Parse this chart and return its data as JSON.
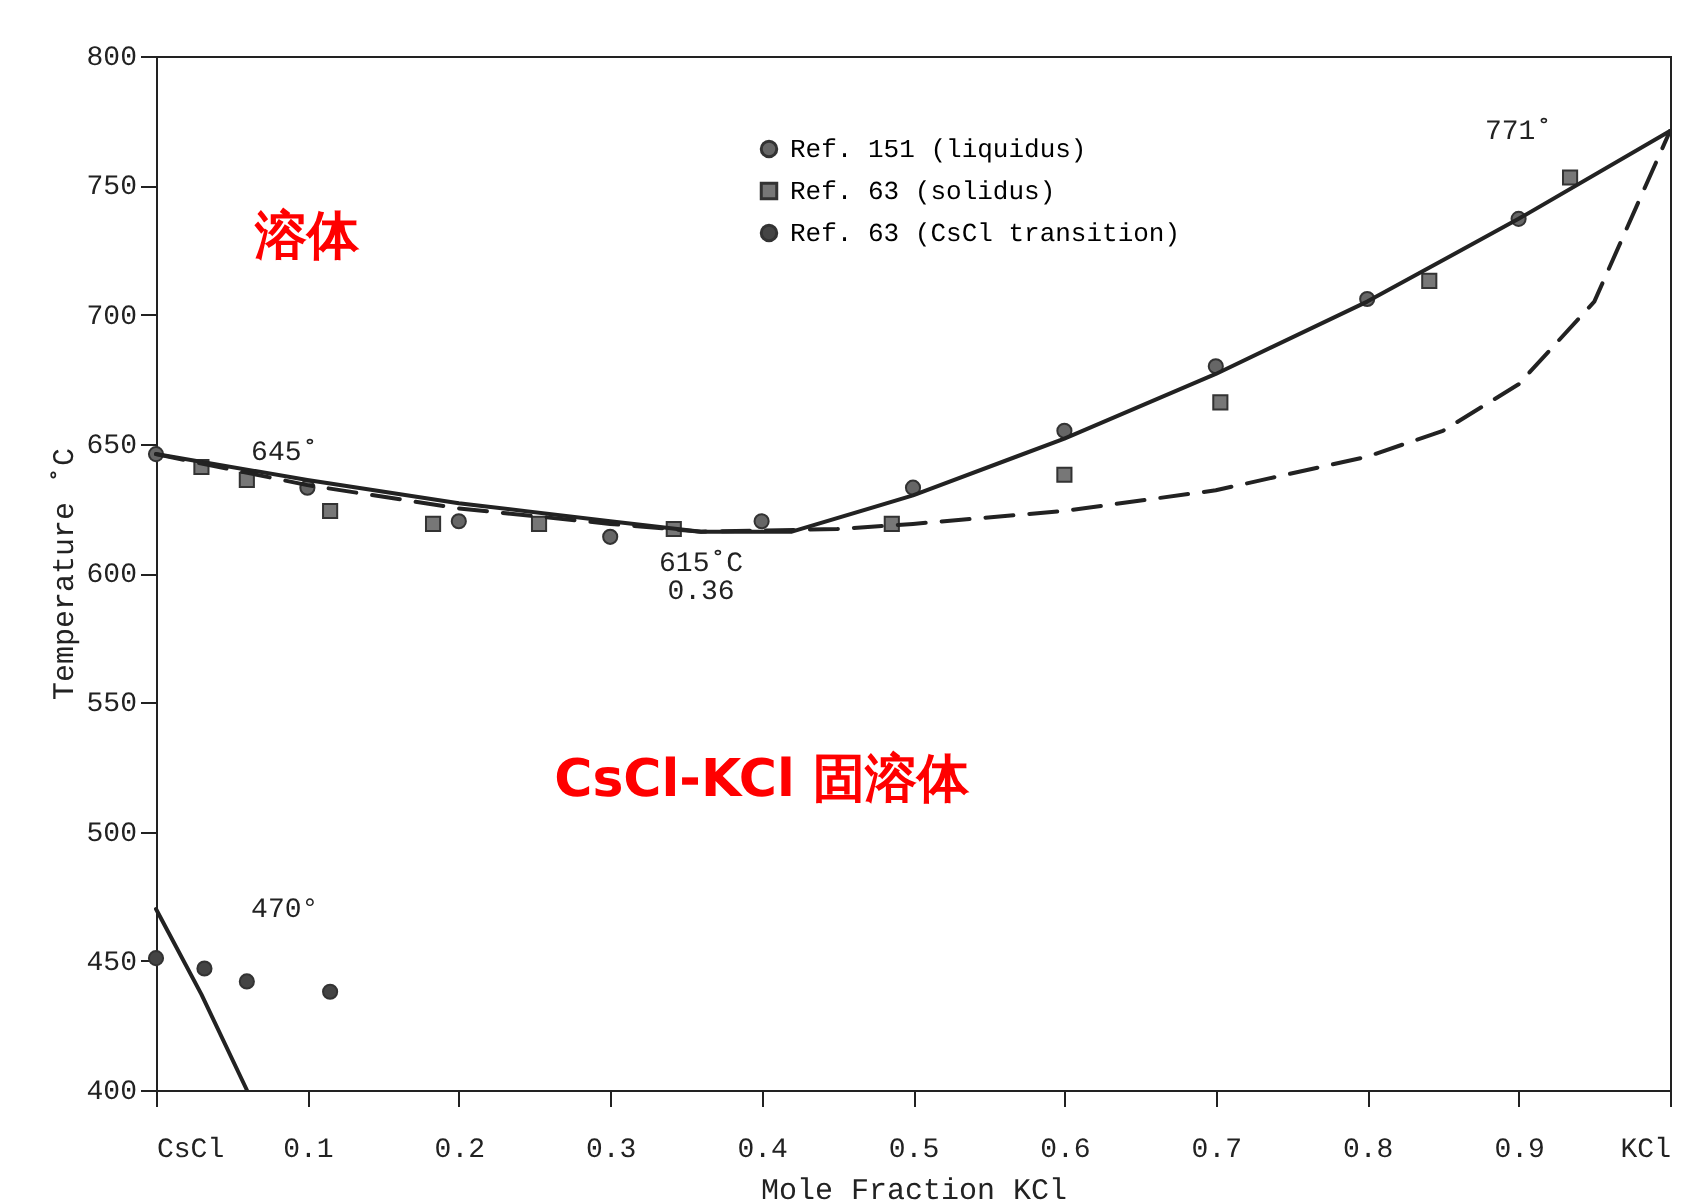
{
  "chart_data": {
    "type": "scatter",
    "xlabel": "Mole Fraction KCl",
    "ylabel": "Temperature ˚C",
    "xlim": [
      0,
      1
    ],
    "ylim": [
      400,
      800
    ],
    "xticks": [
      {
        "value": 0,
        "label": "CsCl"
      },
      {
        "value": 0.1,
        "label": "0.1"
      },
      {
        "value": 0.2,
        "label": "0.2"
      },
      {
        "value": 0.3,
        "label": "0.3"
      },
      {
        "value": 0.4,
        "label": "0.4"
      },
      {
        "value": 0.5,
        "label": "0.5"
      },
      {
        "value": 0.6,
        "label": "0.6"
      },
      {
        "value": 0.7,
        "label": "0.7"
      },
      {
        "value": 0.8,
        "label": "0.8"
      },
      {
        "value": 0.9,
        "label": "0.9"
      },
      {
        "value": 1,
        "label": "KCl"
      }
    ],
    "yticks": [
      400,
      450,
      500,
      550,
      600,
      650,
      700,
      750,
      800
    ],
    "grid": false,
    "legend": "top center",
    "series": [
      {
        "name": "Ref. 151 (liquidus)",
        "marker": "circle",
        "color": "#666666",
        "x": [
          0,
          0.1,
          0.2,
          0.3,
          0.4,
          0.5,
          0.6,
          0.7,
          0.8,
          0.9
        ],
        "values": [
          646,
          633,
          620,
          614,
          620,
          633,
          655,
          680,
          706,
          737
        ]
      },
      {
        "name": "Ref. 63 (solidus)",
        "marker": "square",
        "color": "#777777",
        "x": [
          0.03,
          0.06,
          0.115,
          0.183,
          0.253,
          0.342,
          0.486,
          0.6,
          0.703,
          0.841,
          0.934
        ],
        "values": [
          641,
          636,
          624,
          619,
          619,
          617,
          619,
          638,
          666,
          713,
          753
        ]
      },
      {
        "name": "Ref. 63 (CsCl transition)",
        "marker": "circle",
        "color": "#444444",
        "x": [
          0,
          0.032,
          0.06,
          0.115
        ],
        "values": [
          451,
          447,
          442,
          438
        ]
      },
      {
        "type": "line",
        "line_style": "solid",
        "color": "#222222",
        "x": [
          0,
          0.1,
          0.2,
          0.3,
          0.36,
          0.42,
          0.5,
          0.6,
          0.7,
          0.8,
          0.9,
          1
        ],
        "values": [
          646,
          636,
          627,
          620,
          616,
          616,
          630,
          652,
          677,
          705,
          737,
          771
        ]
      },
      {
        "type": "line",
        "line_style": "dashed",
        "color": "#222222",
        "x": [
          0,
          0.1,
          0.2,
          0.3,
          0.36,
          0.45,
          0.5,
          0.6,
          0.7,
          0.8,
          0.85,
          0.9,
          0.95,
          1
        ],
        "values": [
          646,
          634,
          625,
          619,
          616,
          617,
          619,
          624,
          632,
          645,
          655,
          673,
          705,
          771
        ]
      },
      {
        "type": "line",
        "line_style": "solid",
        "color": "#222222",
        "x": [
          0,
          0.03,
          0.06
        ],
        "values": [
          470,
          437,
          400
        ]
      }
    ],
    "annotations": [
      "645˚",
      "615˚C",
      "0.36",
      "470°",
      "771˚",
      "溶体",
      "CsCl-KCl 固溶体"
    ]
  }
}
